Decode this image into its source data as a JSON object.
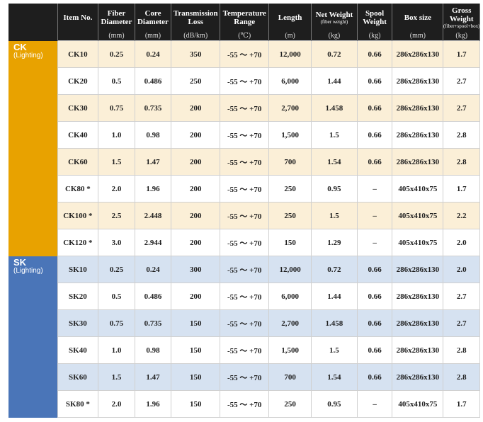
{
  "headers": [
    {
      "label": "Item No.",
      "unit": ""
    },
    {
      "label": "Fiber Diameter",
      "unit": "(mm)"
    },
    {
      "label": "Core Diameter",
      "unit": "(mm)"
    },
    {
      "label": "Transmission Loss",
      "unit": "(dB/km)"
    },
    {
      "label": "Temperature Range",
      "unit": "(℃)"
    },
    {
      "label": "Length",
      "unit": "(m)"
    },
    {
      "label": "Net Weight",
      "sub": "(fiber weight)",
      "unit": "(kg)"
    },
    {
      "label": "Spool Weight",
      "unit": "(kg)"
    },
    {
      "label": "Box size",
      "unit": "(mm)"
    },
    {
      "label": "Gross Weight",
      "sub": "(fiber+spool+box)",
      "unit": "(kg)"
    }
  ],
  "groups": [
    {
      "name": "CK",
      "sub": "(Lighting)",
      "color": "#e8a200",
      "rows": [
        [
          "CK10",
          "0.25",
          "0.24",
          "350",
          "-55 ～ +70",
          "12,000",
          "0.72",
          "0.66",
          "286x286x130",
          "1.7"
        ],
        [
          "CK20",
          "0.5",
          "0.486",
          "250",
          "-55 ～ +70",
          "6,000",
          "1.44",
          "0.66",
          "286x286x130",
          "2.7"
        ],
        [
          "CK30",
          "0.75",
          "0.735",
          "200",
          "-55 ～ +70",
          "2,700",
          "1.458",
          "0.66",
          "286x286x130",
          "2.7"
        ],
        [
          "CK40",
          "1.0",
          "0.98",
          "200",
          "-55 ～ +70",
          "1,500",
          "1.5",
          "0.66",
          "286x286x130",
          "2.8"
        ],
        [
          "CK60",
          "1.5",
          "1.47",
          "200",
          "-55 ～ +70",
          "700",
          "1.54",
          "0.66",
          "286x286x130",
          "2.8"
        ],
        [
          "CK80 *",
          "2.0",
          "1.96",
          "200",
          "-55 ～ +70",
          "250",
          "0.95",
          "–",
          "405x410x75",
          "1.7"
        ],
        [
          "CK100 *",
          "2.5",
          "2.448",
          "200",
          "-55 ～ +70",
          "250",
          "1.5",
          "–",
          "405x410x75",
          "2.2"
        ],
        [
          "CK120 *",
          "3.0",
          "2.944",
          "200",
          "-55 ～ +70",
          "150",
          "1.29",
          "–",
          "405x410x75",
          "2.0"
        ]
      ]
    },
    {
      "name": "SK",
      "sub": "(Lighting)",
      "color": "#4a75b8",
      "rows": [
        [
          "SK10",
          "0.25",
          "0.24",
          "300",
          "-55 ～ +70",
          "12,000",
          "0.72",
          "0.66",
          "286x286x130",
          "2.0"
        ],
        [
          "SK20",
          "0.5",
          "0.486",
          "200",
          "-55 ～ +70",
          "6,000",
          "1.44",
          "0.66",
          "286x286x130",
          "2.7"
        ],
        [
          "SK30",
          "0.75",
          "0.735",
          "150",
          "-55 ～ +70",
          "2,700",
          "1.458",
          "0.66",
          "286x286x130",
          "2.7"
        ],
        [
          "SK40",
          "1.0",
          "0.98",
          "150",
          "-55 ～ +70",
          "1,500",
          "1.5",
          "0.66",
          "286x286x130",
          "2.8"
        ],
        [
          "SK60",
          "1.5",
          "1.47",
          "150",
          "-55 ～ +70",
          "700",
          "1.54",
          "0.66",
          "286x286x130",
          "2.8"
        ],
        [
          "SK80 *",
          "2.0",
          "1.96",
          "150",
          "-55 ～ +70",
          "250",
          "0.95",
          "–",
          "405x410x75",
          "1.7"
        ]
      ]
    }
  ]
}
